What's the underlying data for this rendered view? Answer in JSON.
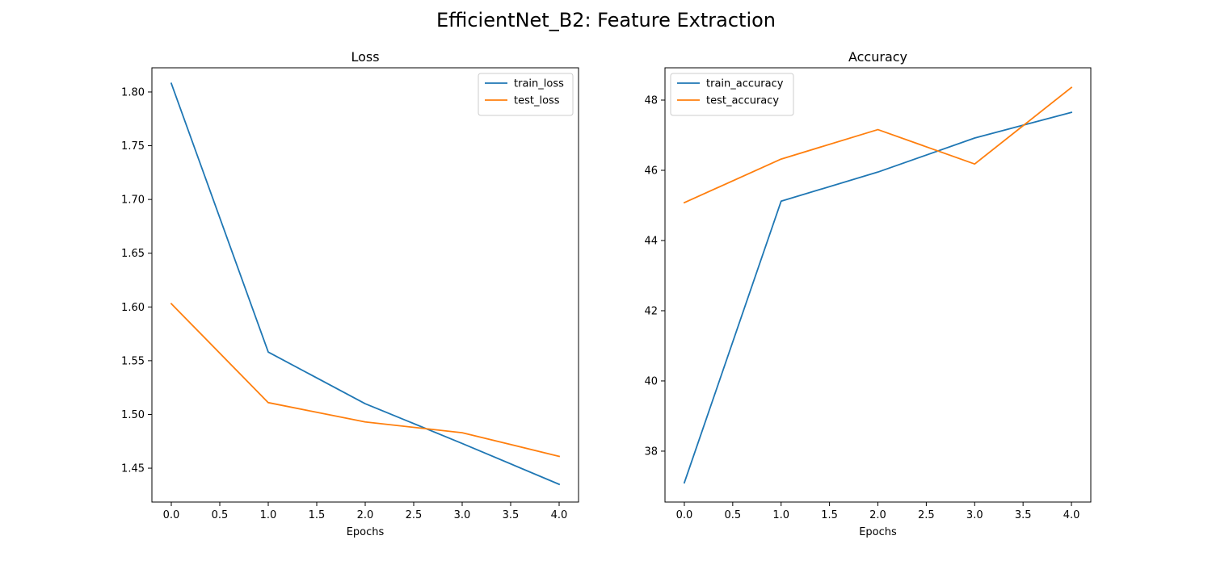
{
  "figure": {
    "suptitle": "EfficientNet_B2: Feature Extraction"
  },
  "chart_data": [
    {
      "type": "line",
      "title": "Loss",
      "xlabel": "Epochs",
      "ylabel": "",
      "x": [
        0,
        1,
        2,
        3,
        4
      ],
      "xlim": [
        -0.2,
        4.2
      ],
      "ylim": [
        1.4185,
        1.8225
      ],
      "xticks": [
        0.0,
        0.5,
        1.0,
        1.5,
        2.0,
        2.5,
        3.0,
        3.5,
        4.0
      ],
      "xtick_labels": [
        "0.0",
        "0.5",
        "1.0",
        "1.5",
        "2.0",
        "2.5",
        "3.0",
        "3.5",
        "4.0"
      ],
      "yticks": [
        1.45,
        1.5,
        1.55,
        1.6,
        1.65,
        1.7,
        1.75,
        1.8
      ],
      "ytick_labels": [
        "1.45",
        "1.50",
        "1.55",
        "1.60",
        "1.65",
        "1.70",
        "1.75",
        "1.80"
      ],
      "grid": false,
      "legend_position": "top-right",
      "series": [
        {
          "name": "train_loss",
          "color": "#1f77b4",
          "values": [
            1.808,
            1.558,
            1.51,
            1.473,
            1.435
          ]
        },
        {
          "name": "test_loss",
          "color": "#ff7f0e",
          "values": [
            1.603,
            1.511,
            1.493,
            1.483,
            1.461
          ]
        }
      ]
    },
    {
      "type": "line",
      "title": "Accuracy",
      "xlabel": "Epochs",
      "ylabel": "",
      "x": [
        0,
        1,
        2,
        3,
        4
      ],
      "xlim": [
        -0.2,
        4.2
      ],
      "ylim": [
        36.55,
        48.92
      ],
      "xticks": [
        0.0,
        0.5,
        1.0,
        1.5,
        2.0,
        2.5,
        3.0,
        3.5,
        4.0
      ],
      "xtick_labels": [
        "0.0",
        "0.5",
        "1.0",
        "1.5",
        "2.0",
        "2.5",
        "3.0",
        "3.5",
        "4.0"
      ],
      "yticks": [
        38,
        40,
        42,
        44,
        46,
        48
      ],
      "ytick_labels": [
        "38",
        "40",
        "42",
        "44",
        "46",
        "48"
      ],
      "grid": false,
      "legend_position": "top-left",
      "series": [
        {
          "name": "train_accuracy",
          "color": "#1f77b4",
          "values": [
            37.1,
            45.12,
            45.95,
            46.92,
            47.65
          ]
        },
        {
          "name": "test_accuracy",
          "color": "#ff7f0e",
          "values": [
            45.08,
            46.32,
            47.16,
            46.18,
            48.36
          ]
        }
      ]
    }
  ]
}
